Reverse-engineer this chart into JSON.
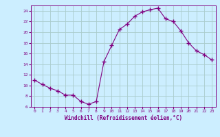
{
  "x": [
    0,
    1,
    2,
    3,
    4,
    5,
    6,
    7,
    8,
    9,
    10,
    11,
    12,
    13,
    14,
    15,
    16,
    17,
    18,
    19,
    20,
    21,
    22,
    23
  ],
  "y": [
    11,
    10.2,
    9.5,
    9,
    8.2,
    8.2,
    7,
    6.5,
    7,
    14.5,
    17.5,
    20.5,
    21.5,
    23,
    23.8,
    24.2,
    24.5,
    22.5,
    22,
    20.2,
    18,
    16.5,
    15.8,
    14.8
  ],
  "line_color": "#800080",
  "marker": "+",
  "marker_size": 4,
  "bg_color": "#cceeff",
  "grid_color": "#aacccc",
  "xlabel": "Windchill (Refroidissement éolien,°C)",
  "xlabel_color": "#800080",
  "tick_color": "#800080",
  "xlim": [
    -0.5,
    23.5
  ],
  "ylim": [
    6,
    25
  ],
  "yticks": [
    6,
    8,
    10,
    12,
    14,
    16,
    18,
    20,
    22,
    24
  ],
  "xticks": [
    0,
    1,
    2,
    3,
    4,
    5,
    6,
    7,
    8,
    9,
    10,
    11,
    12,
    13,
    14,
    15,
    16,
    17,
    18,
    19,
    20,
    21,
    22,
    23
  ]
}
